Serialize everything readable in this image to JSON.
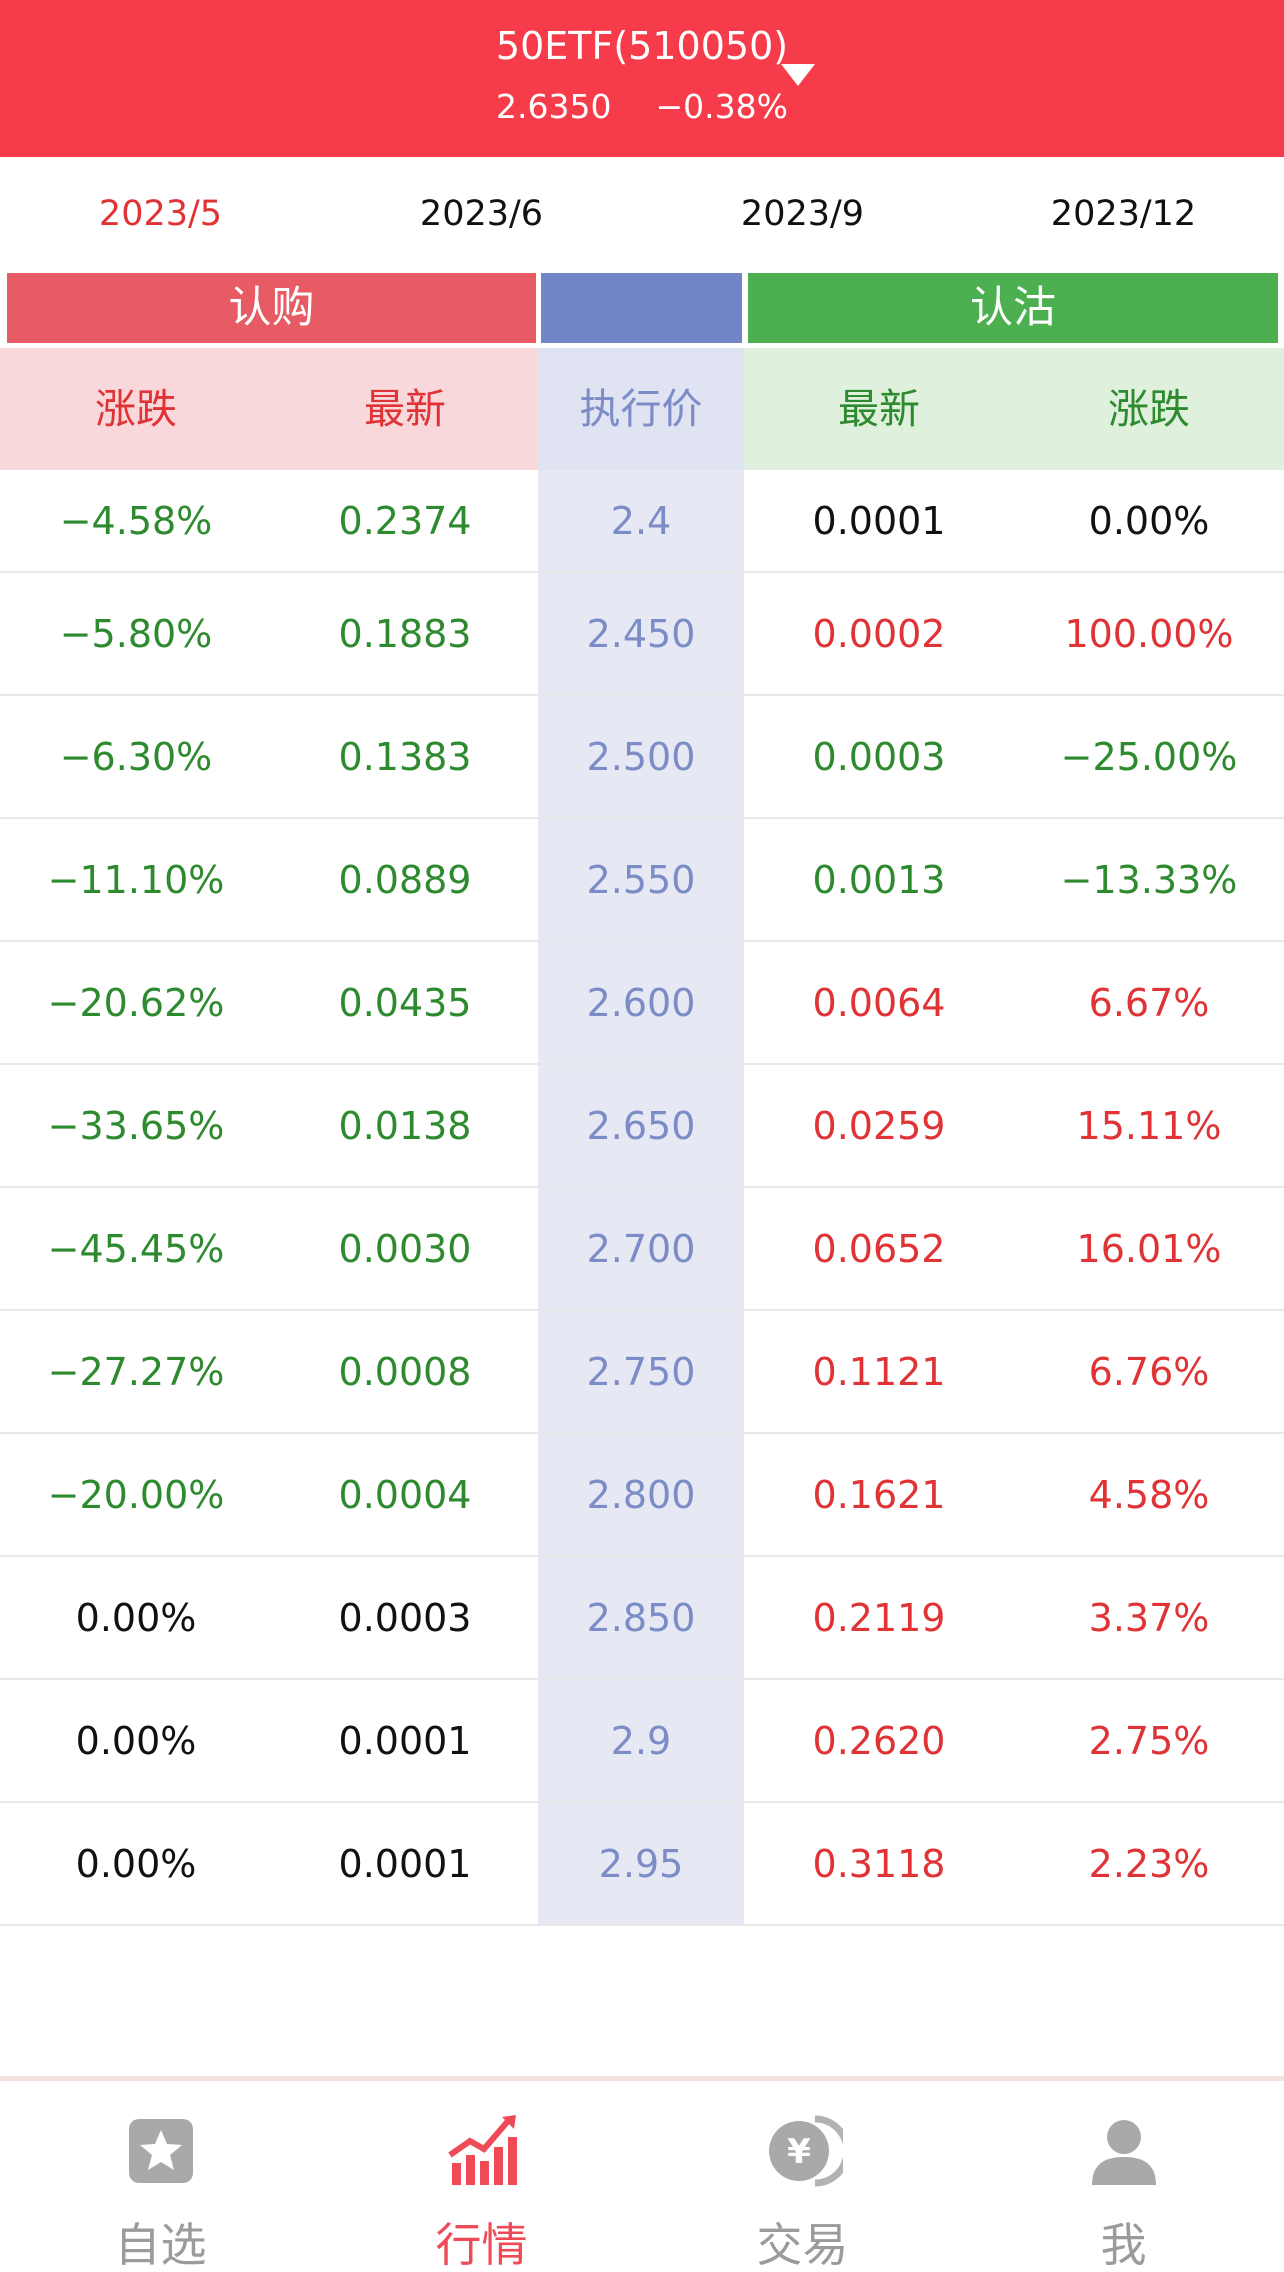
{
  "header": {
    "title": "50ETF(510050)",
    "price": "2.6350",
    "change": "−0.38%"
  },
  "months": [
    "2023/5",
    "2023/6",
    "2023/9",
    "2023/12"
  ],
  "active_month": "2023/5",
  "sections": {
    "call": "认购",
    "put": "认沽"
  },
  "columns": {
    "call_change": "涨跌",
    "call_latest": "最新",
    "strike": "执行价",
    "put_latest": "最新",
    "put_change": "涨跌"
  },
  "colors": {
    "header_bg": "#f63c4a",
    "up": "#e03336",
    "down": "#2e8a2e",
    "strike": "#7b8cc6",
    "call_section": "#e65b64",
    "put_section": "#4caf50"
  },
  "rows": [
    {
      "call_change": "−4.58%",
      "call_latest": "0.2374",
      "strike": "2.4",
      "put_latest": "0.0001",
      "put_change": "0.00%",
      "call_dir": "down",
      "put_dir": "flat"
    },
    {
      "call_change": "−5.80%",
      "call_latest": "0.1883",
      "strike": "2.450",
      "put_latest": "0.0002",
      "put_change": "100.00%",
      "call_dir": "down",
      "put_dir": "up"
    },
    {
      "call_change": "−6.30%",
      "call_latest": "0.1383",
      "strike": "2.500",
      "put_latest": "0.0003",
      "put_change": "−25.00%",
      "call_dir": "down",
      "put_dir": "down"
    },
    {
      "call_change": "−11.10%",
      "call_latest": "0.0889",
      "strike": "2.550",
      "put_latest": "0.0013",
      "put_change": "−13.33%",
      "call_dir": "down",
      "put_dir": "down"
    },
    {
      "call_change": "−20.62%",
      "call_latest": "0.0435",
      "strike": "2.600",
      "put_latest": "0.0064",
      "put_change": "6.67%",
      "call_dir": "down",
      "put_dir": "up"
    },
    {
      "call_change": "−33.65%",
      "call_latest": "0.0138",
      "strike": "2.650",
      "put_latest": "0.0259",
      "put_change": "15.11%",
      "call_dir": "down",
      "put_dir": "up"
    },
    {
      "call_change": "−45.45%",
      "call_latest": "0.0030",
      "strike": "2.700",
      "put_latest": "0.0652",
      "put_change": "16.01%",
      "call_dir": "down",
      "put_dir": "up"
    },
    {
      "call_change": "−27.27%",
      "call_latest": "0.0008",
      "strike": "2.750",
      "put_latest": "0.1121",
      "put_change": "6.76%",
      "call_dir": "down",
      "put_dir": "up"
    },
    {
      "call_change": "−20.00%",
      "call_latest": "0.0004",
      "strike": "2.800",
      "put_latest": "0.1621",
      "put_change": "4.58%",
      "call_dir": "down",
      "put_dir": "up"
    },
    {
      "call_change": "0.00%",
      "call_latest": "0.0003",
      "strike": "2.850",
      "put_latest": "0.2119",
      "put_change": "3.37%",
      "call_dir": "flat",
      "put_dir": "up"
    },
    {
      "call_change": "0.00%",
      "call_latest": "0.0001",
      "strike": "2.9",
      "put_latest": "0.2620",
      "put_change": "2.75%",
      "call_dir": "flat",
      "put_dir": "up"
    },
    {
      "call_change": "0.00%",
      "call_latest": "0.0001",
      "strike": "2.95",
      "put_latest": "0.3118",
      "put_change": "2.23%",
      "call_dir": "flat",
      "put_dir": "up"
    }
  ],
  "nav": [
    {
      "label": "自选",
      "icon": "star-icon"
    },
    {
      "label": "行情",
      "icon": "chart-trend-icon"
    },
    {
      "label": "交易",
      "icon": "yen-coin-icon"
    },
    {
      "label": "我",
      "icon": "user-icon"
    }
  ],
  "active_nav": "行情"
}
